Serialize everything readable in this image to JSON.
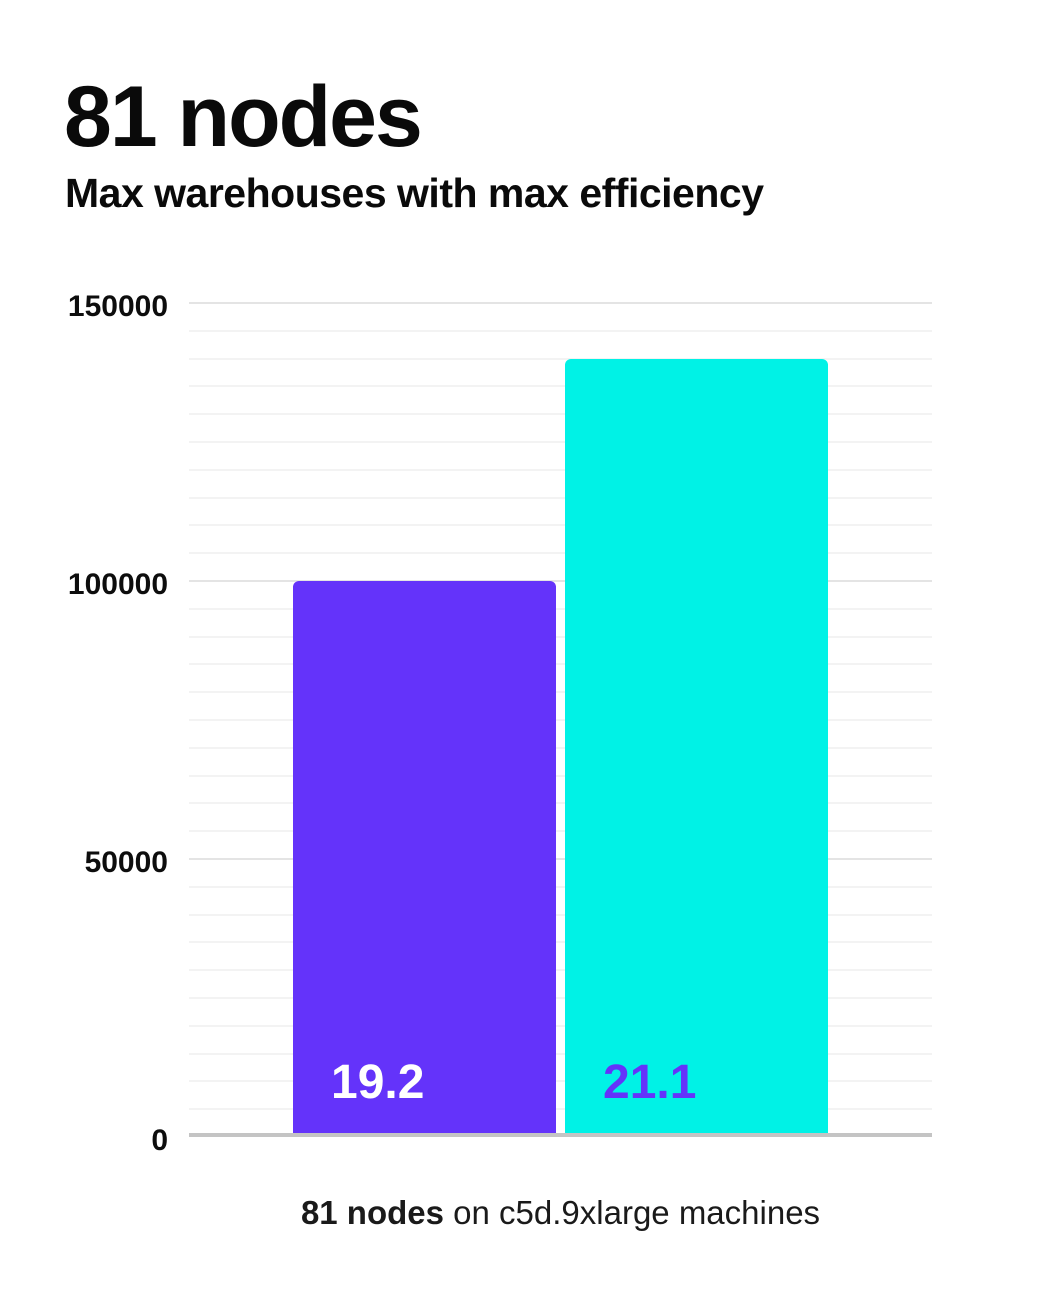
{
  "header": {
    "title": "81 nodes",
    "subtitle": "Max warehouses with max efficiency"
  },
  "chart_data": {
    "type": "bar",
    "title": "81 nodes",
    "subtitle": "Max warehouses with max efficiency",
    "categories": [
      "19.2",
      "21.1"
    ],
    "values": [
      100000,
      140000
    ],
    "bar_labels": [
      "19.2",
      "21.1"
    ],
    "bar_colors": [
      "#6433fa",
      "#00f2e6"
    ],
    "bar_label_colors": [
      "#ffffff",
      "#6433fa"
    ],
    "xlabel": "",
    "ylabel": "",
    "ylim": [
      0,
      150000
    ],
    "y_major_ticks": [
      0,
      50000,
      100000,
      150000
    ],
    "y_major_tick_labels": [
      "0",
      "50000",
      "100000",
      "150000"
    ],
    "y_minor_step": 5000,
    "grid": "horizontal-minor-and-major",
    "legend": "none",
    "caption": "81 nodes on c5d.9xlarge machines"
  },
  "caption": {
    "bold": "81 nodes",
    "rest": " on c5d.9xlarge machines"
  },
  "colors": {
    "purple": "#6433fa",
    "cyan": "#00f2e6",
    "grid_minor": "#f3f3f3",
    "grid_major": "#e4e4e4",
    "axis_line": "#c4c4c4",
    "text": "#0a0a0a"
  }
}
